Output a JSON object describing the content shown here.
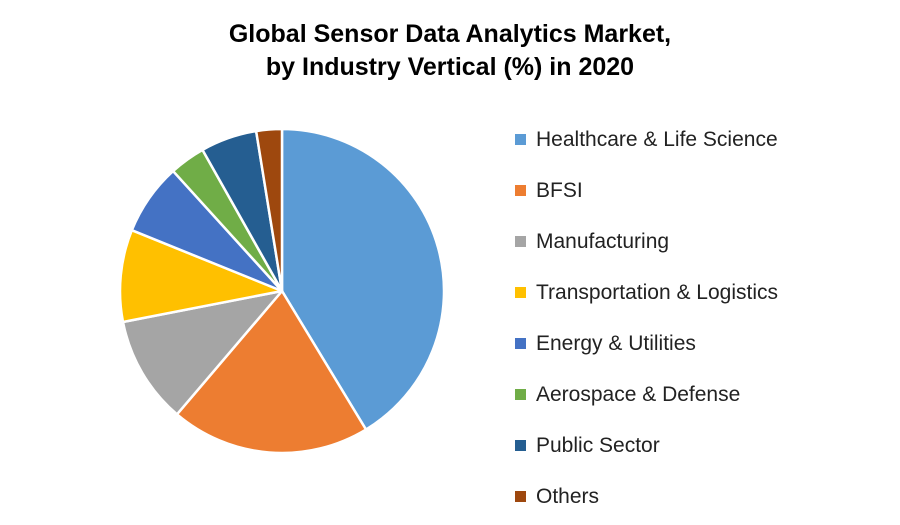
{
  "chart_data": {
    "type": "pie",
    "title": [
      "Global Sensor Data Analytics Market,",
      "by Industry Vertical (%) in 2020"
    ],
    "legend_position": "right",
    "slices": [
      {
        "label": "Healthcare & Life Science",
        "value": 40.5,
        "color": "#5B9BD5"
      },
      {
        "label": "BFSI",
        "value": 19.5,
        "color": "#ED7D31"
      },
      {
        "label": "Manufacturing",
        "value": 10.5,
        "color": "#A5A5A5"
      },
      {
        "label": "Transportation & Logistics",
        "value": 9.0,
        "color": "#FFC000"
      },
      {
        "label": "Energy & Utilities",
        "value": 7.0,
        "color": "#4472C4"
      },
      {
        "label": "Aerospace & Defense",
        "value": 3.5,
        "color": "#70AD47"
      },
      {
        "label": "Public Sector",
        "value": 5.5,
        "color": "#255E91"
      },
      {
        "label": "Others",
        "value": 2.5,
        "color": "#9E480E"
      }
    ]
  }
}
